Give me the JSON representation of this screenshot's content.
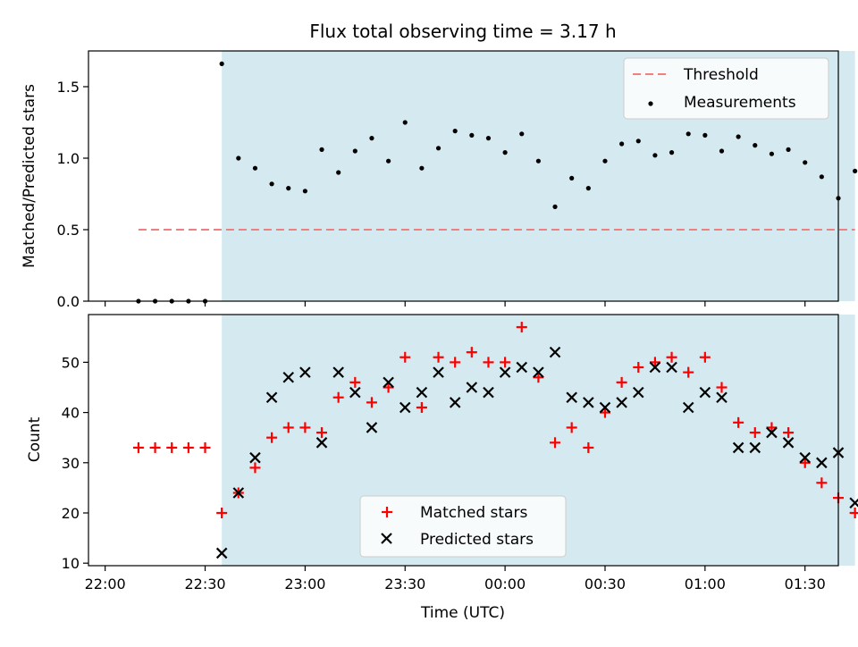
{
  "chart_data": [
    {
      "type": "scatter",
      "title": "Flux total observing time = 3.17 h",
      "xlabel": "",
      "ylabel": "Matched/Predicted stars",
      "ylim": [
        0,
        1.75
      ],
      "yticks": [
        "0.0",
        "0.5",
        "1.0",
        "1.5"
      ],
      "xlim_minutes": [
        -5,
        220
      ],
      "shaded_span_minutes": [
        35,
        225
      ],
      "shade_color": "#d4eaf0",
      "legend_position": "top-right",
      "threshold": {
        "name": "Threshold",
        "value": 0.5,
        "x_range": [
          10,
          225
        ],
        "color": "#f08080"
      },
      "series": [
        {
          "name": "Measurements",
          "color": "#000000",
          "x": [
            10,
            15,
            20,
            25,
            30,
            35,
            40,
            45,
            50,
            55,
            60,
            65,
            70,
            75,
            80,
            85,
            90,
            95,
            100,
            105,
            110,
            115,
            120,
            125,
            130,
            135,
            140,
            145,
            150,
            155,
            160,
            165,
            170,
            175,
            180,
            185,
            190,
            195,
            200,
            205,
            210,
            215,
            220,
            225
          ],
          "y": [
            0,
            0,
            0,
            0,
            0,
            1.66,
            1.0,
            0.93,
            0.82,
            0.79,
            0.77,
            1.06,
            0.9,
            1.05,
            1.14,
            0.98,
            1.25,
            0.93,
            1.07,
            1.19,
            1.16,
            1.14,
            1.04,
            1.17,
            0.98,
            0.66,
            0.86,
            0.79,
            0.98,
            1.1,
            1.12,
            1.02,
            1.04,
            1.17,
            1.16,
            1.05,
            1.15,
            1.09,
            1.03,
            1.06,
            0.97,
            0.87,
            0.72,
            0.91
          ]
        }
      ]
    },
    {
      "type": "scatter",
      "title": "",
      "xlabel": "Time (UTC)",
      "ylabel": "Count",
      "ylim": [
        9.5,
        59.5
      ],
      "yticks": [
        "10",
        "20",
        "30",
        "40",
        "50"
      ],
      "xlim_minutes": [
        -5,
        220
      ],
      "shaded_span_minutes": [
        35,
        225
      ],
      "x_tick_labels": [
        "22:00",
        "22:30",
        "23:00",
        "23:30",
        "00:00",
        "00:30",
        "01:00",
        "01:30"
      ],
      "legend_position": "lower center",
      "series": [
        {
          "name": "Matched stars",
          "marker": "+",
          "color": "#ff0000",
          "x": [
            10,
            15,
            20,
            25,
            30,
            35,
            40,
            45,
            50,
            55,
            60,
            65,
            70,
            75,
            80,
            85,
            90,
            95,
            100,
            105,
            110,
            115,
            120,
            125,
            130,
            135,
            140,
            145,
            150,
            155,
            160,
            165,
            170,
            175,
            180,
            185,
            190,
            195,
            200,
            205,
            210,
            215,
            220,
            225
          ],
          "y": [
            33,
            33,
            33,
            33,
            33,
            20,
            24,
            29,
            35,
            37,
            37,
            36,
            43,
            46,
            42,
            45,
            51,
            41,
            51,
            50,
            52,
            50,
            50,
            57,
            47,
            34,
            37,
            33,
            40,
            46,
            49,
            50,
            51,
            48,
            51,
            45,
            38,
            36,
            37,
            36,
            30,
            26,
            23,
            20
          ]
        },
        {
          "name": "Predicted stars",
          "marker": "x",
          "color": "#000000",
          "x": [
            35,
            40,
            45,
            50,
            55,
            60,
            65,
            70,
            75,
            80,
            85,
            90,
            95,
            100,
            105,
            110,
            115,
            120,
            125,
            130,
            135,
            140,
            145,
            150,
            155,
            160,
            165,
            170,
            175,
            180,
            185,
            190,
            195,
            200,
            205,
            210,
            215,
            220,
            225
          ],
          "y": [
            12,
            24,
            31,
            43,
            47,
            48,
            34,
            48,
            44,
            37,
            46,
            41,
            44,
            48,
            42,
            45,
            44,
            48,
            49,
            48,
            52,
            43,
            42,
            41,
            42,
            44,
            49,
            49,
            41,
            44,
            43,
            33,
            33,
            36,
            34,
            31,
            30,
            32,
            22
          ]
        }
      ]
    }
  ]
}
